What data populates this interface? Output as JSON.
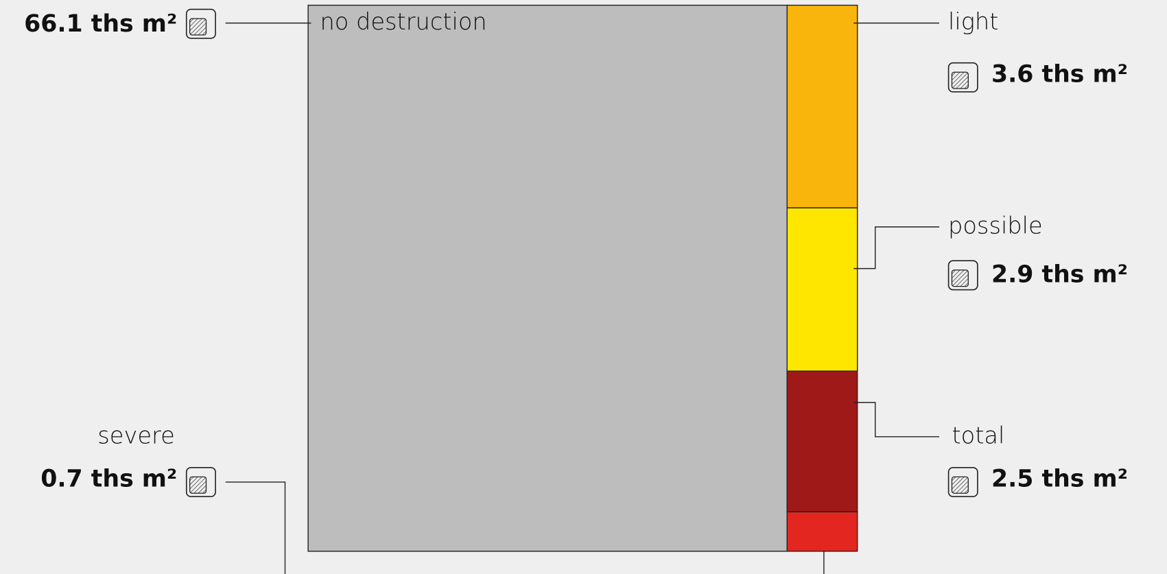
{
  "chart_data": {
    "type": "treemap",
    "categories": [
      "no destruction",
      "light",
      "possible",
      "total",
      "severe"
    ],
    "values": [
      66.1,
      3.6,
      2.9,
      2.5,
      0.7
    ],
    "value_labels": [
      "66.1 ths m²",
      "3.6 ths m²",
      "2.9 ths m²",
      "2.5 ths m²",
      "0.7 ths m²"
    ],
    "colors": [
      "#bdbdbd",
      "#f9b50c",
      "#ffe600",
      "#a01919",
      "#e32620"
    ]
  }
}
